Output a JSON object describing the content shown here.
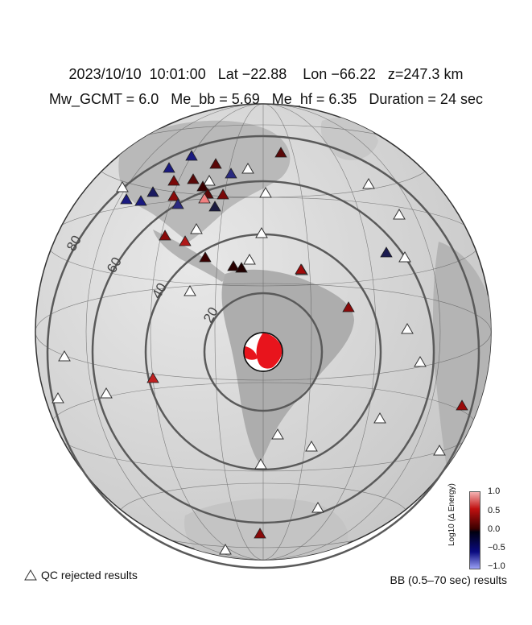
{
  "header": {
    "line1": "2023/10/10  10:01:00   Lat −22.88    Lon −66.22   z=247.3 km",
    "line2": "Mw_GCMT = 6.0   Me_bb = 5.69   Me_hf = 6.35   Duration = 24 sec"
  },
  "map": {
    "distance_rings": [
      "20",
      "40",
      "60",
      "80"
    ],
    "beachball_colors": {
      "fill": "#e8141c",
      "blank": "#ffffff"
    },
    "stations": [
      {
        "color": "#5a0808"
      },
      {
        "color": "#1a1a80"
      },
      {
        "color": "#1a1a80"
      },
      {
        "color": "#5a0808"
      },
      {
        "color": "#2a2a80"
      },
      {
        "color": "#5a0808"
      },
      {
        "color": "#7a0808"
      },
      {
        "color": "#1a1a60"
      },
      {
        "color": "#3a0000"
      },
      {
        "color": "#5a0808"
      },
      {
        "color": "#8a0a0a"
      },
      {
        "color": "#1a1a80"
      },
      {
        "color": "#1a1a80"
      },
      {
        "color": "#2a2a80"
      },
      {
        "color": "#f08080"
      },
      {
        "color": "#1a1a40"
      },
      {
        "color": "#7a0808"
      },
      {
        "color": "#8a0a0a"
      },
      {
        "color": "#b01818"
      },
      {
        "color": "#3a0000"
      },
      {
        "color": "#2a0000"
      },
      {
        "color": "#1a1a50"
      },
      {
        "color": "#8a0a0a"
      },
      {
        "color": "#c02020"
      },
      {
        "color": "#9a0a0a"
      },
      {
        "color": "#8a0a0a"
      },
      {
        "color": "#a00a0a"
      },
      {
        "color": "#200000"
      }
    ]
  },
  "colorbar": {
    "ticks": [
      "1.0",
      "0.5",
      "0.0",
      "−0.5",
      "−1.0"
    ],
    "label": "Log10 (Δ Energy)",
    "gradient_top": "#f4b2b2",
    "gradient_bottom": "#9aa0f4"
  },
  "legend": {
    "qc_rejected": "QC rejected results",
    "bb_results": "BB (0.5–70 sec) results"
  }
}
